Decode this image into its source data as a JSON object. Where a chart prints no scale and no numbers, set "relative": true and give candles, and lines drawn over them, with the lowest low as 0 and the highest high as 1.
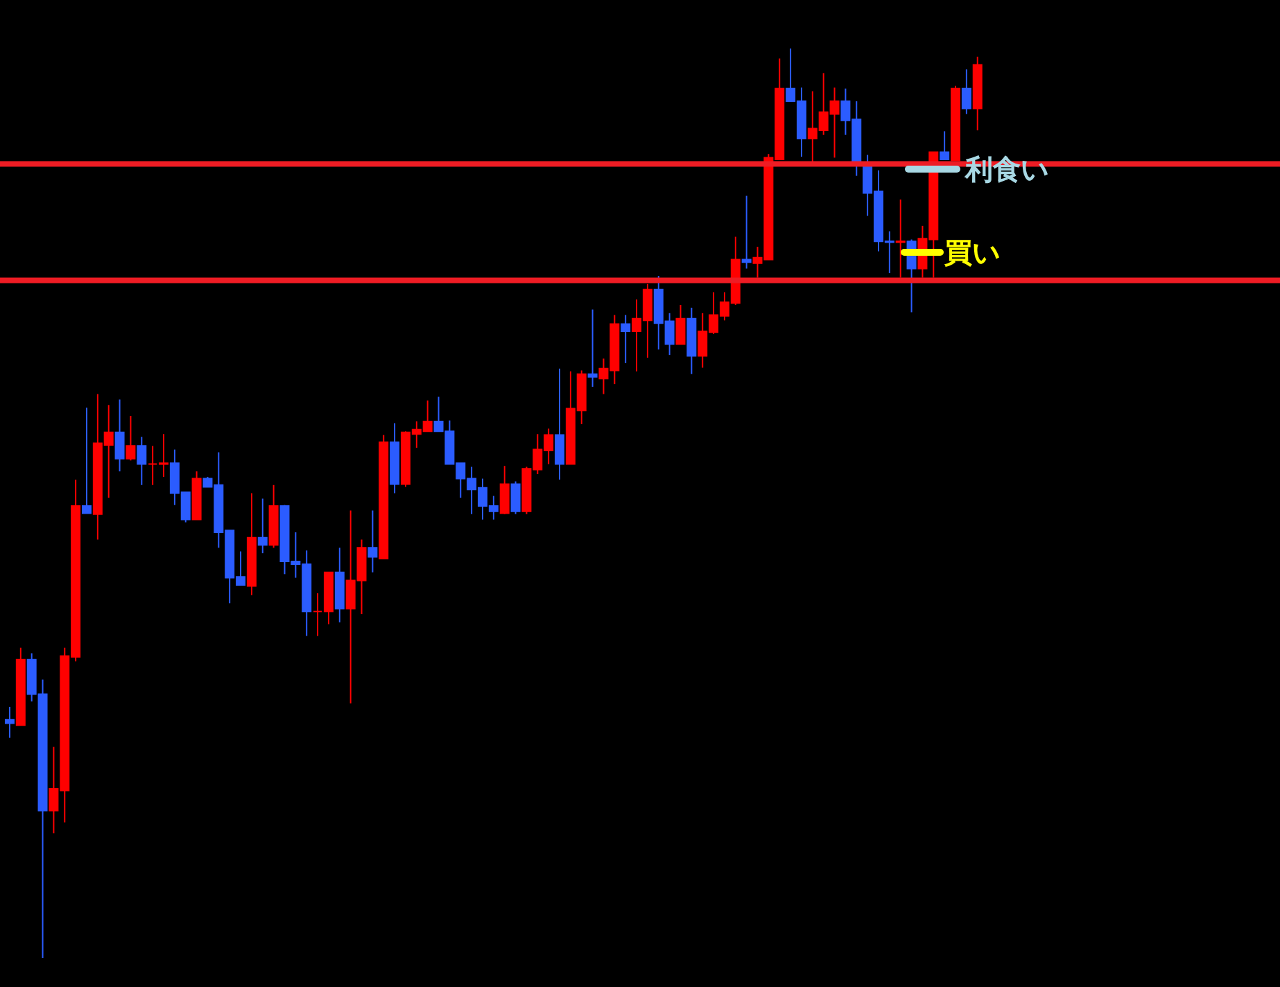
{
  "chart_data": {
    "type": "candlestick",
    "relative": true,
    "categories": [
      null,
      null,
      null,
      null,
      null,
      null,
      null,
      null,
      null,
      null,
      null,
      null,
      null,
      null,
      null,
      null,
      null,
      null,
      null,
      null,
      null,
      null,
      null,
      null,
      null,
      null,
      null,
      null,
      null,
      null,
      null,
      null,
      null,
      null,
      null,
      null,
      null,
      null,
      null,
      null,
      null,
      null,
      null,
      null,
      null,
      null,
      null,
      null,
      null,
      null,
      null,
      null,
      null,
      null,
      null,
      null,
      null,
      null,
      null,
      null,
      null,
      null,
      null,
      null,
      null,
      null,
      null,
      null,
      null,
      null,
      null,
      null,
      null,
      null,
      null,
      null,
      null,
      null,
      null,
      null,
      null,
      null,
      null,
      null,
      null,
      null,
      null,
      null,
      null
    ],
    "ohlc": [
      [
        0.262,
        0.276,
        0.242,
        0.258
      ],
      [
        0.256,
        0.341,
        0.256,
        0.328
      ],
      [
        0.328,
        0.335,
        0.282,
        0.29
      ],
      [
        0.29,
        0.306,
        0,
        0.162
      ],
      [
        0.162,
        0.232,
        0.137,
        0.186
      ],
      [
        0.184,
        0.341,
        0.149,
        0.332
      ],
      [
        0.331,
        0.526,
        0.326,
        0.497
      ],
      [
        0.497,
        0.605,
        0.489,
        0.489
      ],
      [
        0.488,
        0.62,
        0.46,
        0.566
      ],
      [
        0.564,
        0.608,
        0.506,
        0.578
      ],
      [
        0.578,
        0.614,
        0.535,
        0.549
      ],
      [
        0.549,
        0.596,
        0.547,
        0.563
      ],
      [
        0.563,
        0.573,
        0.52,
        0.543
      ],
      [
        0.543,
        0.563,
        0.52,
        0.543
      ],
      [
        0.543,
        0.576,
        0.529,
        0.544
      ],
      [
        0.544,
        0.559,
        0.498,
        0.511
      ],
      [
        0.512,
        0.512,
        0.479,
        0.482
      ],
      [
        0.482,
        0.535,
        0.482,
        0.527
      ],
      [
        0.527,
        0.529,
        0.518,
        0.518
      ],
      [
        0.52,
        0.556,
        0.451,
        0.468
      ],
      [
        0.47,
        0.47,
        0.39,
        0.418
      ],
      [
        0.419,
        0.447,
        0.41,
        0.41
      ],
      [
        0.409,
        0.511,
        0.399,
        0.462
      ],
      [
        0.462,
        0.505,
        0.445,
        0.454
      ],
      [
        0.454,
        0.52,
        0.451,
        0.497
      ],
      [
        0.497,
        0.498,
        0.422,
        0.436
      ],
      [
        0.436,
        0.468,
        0.418,
        0.433
      ],
      [
        0.433,
        0.448,
        0.354,
        0.381
      ],
      [
        0.381,
        0.401,
        0.354,
        0.381
      ],
      [
        0.381,
        0.424,
        0.367,
        0.424
      ],
      [
        0.424,
        0.451,
        0.369,
        0.384
      ],
      [
        0.384,
        0.492,
        0.28,
        0.415
      ],
      [
        0.415,
        0.46,
        0.378,
        0.451
      ],
      [
        0.451,
        0.492,
        0.424,
        0.441
      ],
      [
        0.439,
        0.575,
        0.439,
        0.567
      ],
      [
        0.567,
        0.588,
        0.511,
        0.521
      ],
      [
        0.521,
        0.579,
        0.518,
        0.578
      ],
      [
        0.576,
        0.59,
        0.561,
        0.581
      ],
      [
        0.579,
        0.613,
        0.579,
        0.59
      ],
      [
        0.59,
        0.617,
        0.579,
        0.579
      ],
      [
        0.579,
        0.591,
        0.543,
        0.543
      ],
      [
        0.544,
        0.544,
        0.506,
        0.527
      ],
      [
        0.527,
        0.54,
        0.488,
        0.515
      ],
      [
        0.517,
        0.527,
        0.482,
        0.497
      ],
      [
        0.497,
        0.508,
        0.482,
        0.491
      ],
      [
        0.489,
        0.541,
        0.488,
        0.521
      ],
      [
        0.521,
        0.524,
        0.488,
        0.491
      ],
      [
        0.491,
        0.54,
        0.488,
        0.538
      ],
      [
        0.537,
        0.576,
        0.532,
        0.559
      ],
      [
        0.558,
        0.582,
        0.543,
        0.575
      ],
      [
        0.575,
        0.648,
        0.526,
        0.543
      ],
      [
        0.543,
        0.645,
        0.543,
        0.604
      ],
      [
        0.602,
        0.646,
        0.587,
        0.642
      ],
      [
        0.642,
        0.713,
        0.628,
        0.639
      ],
      [
        0.637,
        0.659,
        0.62,
        0.648
      ],
      [
        0.646,
        0.707,
        0.631,
        0.697
      ],
      [
        0.697,
        0.707,
        0.654,
        0.689
      ],
      [
        0.689,
        0.724,
        0.645,
        0.703
      ],
      [
        0.701,
        0.741,
        0.66,
        0.735
      ],
      [
        0.735,
        0.75,
        0.669,
        0.698
      ],
      [
        0.7,
        0.709,
        0.663,
        0.675
      ],
      [
        0.675,
        0.718,
        0.675,
        0.703
      ],
      [
        0.703,
        0.715,
        0.642,
        0.662
      ],
      [
        0.662,
        0.709,
        0.649,
        0.689
      ],
      [
        0.688,
        0.732,
        0.686,
        0.707
      ],
      [
        0.706,
        0.732,
        0.701,
        0.721
      ],
      [
        0.72,
        0.793,
        0.718,
        0.768
      ],
      [
        0.768,
        0.838,
        0.758,
        0.765
      ],
      [
        0.764,
        0.782,
        0.748,
        0.77
      ],
      [
        0.768,
        0.884,
        0.768,
        0.88
      ],
      [
        0.878,
        0.989,
        0.878,
        0.956
      ],
      [
        0.956,
        1,
        0.942,
        0.942
      ],
      [
        0.942,
        0.957,
        0.881,
        0.901
      ],
      [
        0.901,
        0.953,
        0.875,
        0.912
      ],
      [
        0.91,
        0.973,
        0.905,
        0.93
      ],
      [
        0.928,
        0.957,
        0.88,
        0.942
      ],
      [
        0.942,
        0.956,
        0.905,
        0.921
      ],
      [
        0.922,
        0.942,
        0.86,
        0.875
      ],
      [
        0.875,
        0.883,
        0.816,
        0.841
      ],
      [
        0.843,
        0.866,
        0.777,
        0.788
      ],
      [
        0.788,
        0.799,
        0.753,
        0.787
      ],
      [
        0.787,
        0.834,
        0.748,
        0.788
      ],
      [
        0.788,
        0.79,
        0.71,
        0.758
      ],
      [
        0.758,
        0.805,
        0.748,
        0.791
      ],
      [
        0.79,
        0.886,
        0.748,
        0.886
      ],
      [
        0.886,
        0.909,
        0.878,
        0.878
      ],
      [
        0.877,
        0.959,
        0.877,
        0.956
      ],
      [
        0.956,
        0.977,
        0.928,
        0.934
      ],
      [
        0.934,
        0.991,
        0.91,
        0.982
      ]
    ],
    "colors": [
      "#2b5cff",
      "#ff0000",
      "#2b5cff",
      "#2b5cff",
      "#ff0000",
      "#ff0000",
      "#ff0000",
      "#2b5cff",
      "#ff0000",
      "#ff0000",
      "#2b5cff",
      "#ff0000",
      "#2b5cff",
      "#ff0000",
      "#ff0000",
      "#2b5cff",
      "#2b5cff",
      "#ff0000",
      "#2b5cff",
      "#2b5cff",
      "#2b5cff",
      "#2b5cff",
      "#ff0000",
      "#2b5cff",
      "#ff0000",
      "#2b5cff",
      "#2b5cff",
      "#2b5cff",
      "#ff0000",
      "#ff0000",
      "#2b5cff",
      "#ff0000",
      "#ff0000",
      "#2b5cff",
      "#ff0000",
      "#2b5cff",
      "#ff0000",
      "#ff0000",
      "#ff0000",
      "#2b5cff",
      "#2b5cff",
      "#2b5cff",
      "#2b5cff",
      "#2b5cff",
      "#2b5cff",
      "#ff0000",
      "#2b5cff",
      "#ff0000",
      "#ff0000",
      "#ff0000",
      "#2b5cff",
      "#ff0000",
      "#ff0000",
      "#2b5cff",
      "#ff0000",
      "#ff0000",
      "#2b5cff",
      "#ff0000",
      "#ff0000",
      "#2b5cff",
      "#2b5cff",
      "#ff0000",
      "#2b5cff",
      "#ff0000",
      "#ff0000",
      "#ff0000",
      "#ff0000",
      "#2b5cff",
      "#ff0000",
      "#ff0000",
      "#ff0000",
      "#2b5cff",
      "#2b5cff",
      "#ff0000",
      "#ff0000",
      "#ff0000",
      "#2b5cff",
      "#2b5cff",
      "#2b5cff",
      "#2b5cff",
      "#2b5cff",
      "#ff0000",
      "#2b5cff",
      "#ff0000",
      "#ff0000",
      "#2b5cff",
      "#ff0000",
      "#2b5cff",
      "#ff0000"
    ],
    "ref_lines": [
      {
        "axis": "y",
        "value": 0.873,
        "color": "#ee1c24"
      },
      {
        "axis": "y",
        "value": 0.745,
        "color": "#ee1c24"
      }
    ],
    "annotations": [
      "利食い",
      "買い"
    ]
  }
}
